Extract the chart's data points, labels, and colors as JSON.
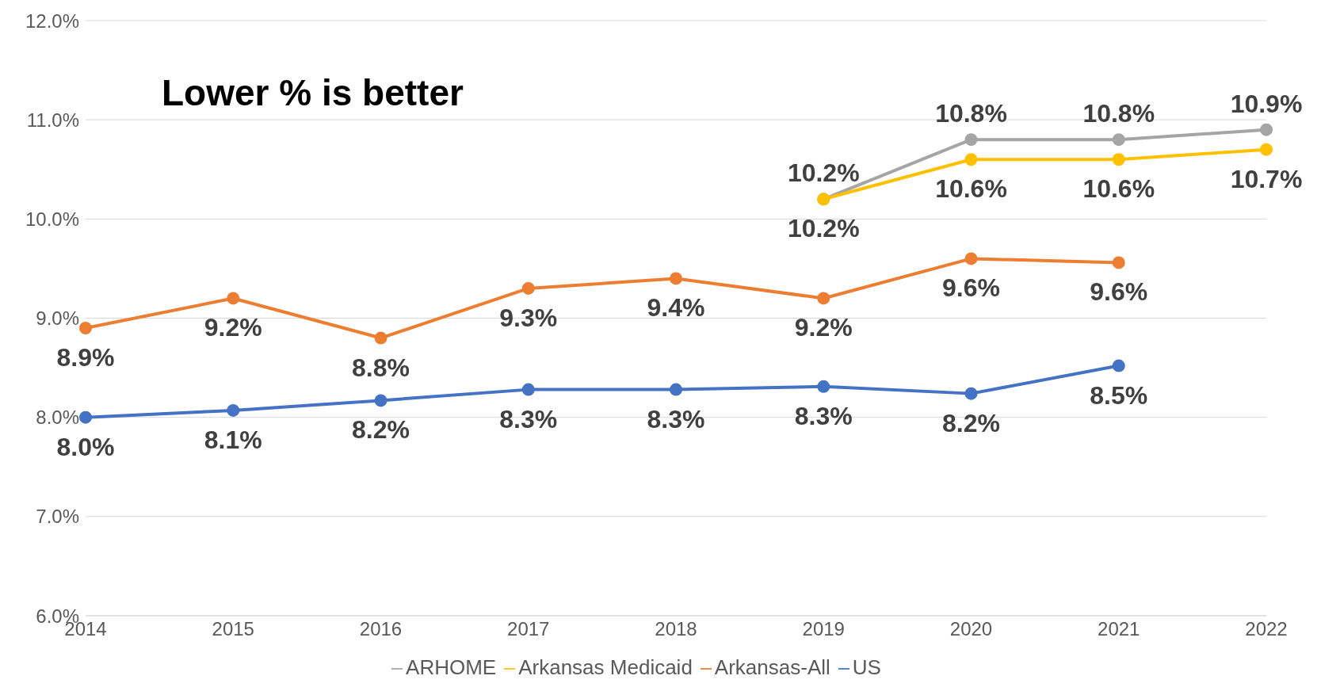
{
  "chart_data": {
    "type": "line",
    "categories": [
      "2014",
      "2015",
      "2016",
      "2017",
      "2018",
      "2019",
      "2020",
      "2021",
      "2022"
    ],
    "series": [
      {
        "name": "US",
        "color": "#4472c4",
        "values": [
          8.0,
          8.07,
          8.17,
          8.28,
          8.28,
          8.31,
          8.24,
          8.52,
          null
        ],
        "value_labels": [
          "8.0%",
          "8.1%",
          "8.2%",
          "8.3%",
          "8.3%",
          "8.3%",
          "8.2%",
          "8.5%",
          null
        ]
      },
      {
        "name": "Arkansas-All",
        "color": "#ed7d31",
        "values": [
          8.9,
          9.2,
          8.8,
          9.3,
          9.4,
          9.2,
          9.6,
          9.56,
          null
        ],
        "value_labels": [
          "8.9%",
          "9.2%",
          "8.8%",
          "9.3%",
          "9.4%",
          "9.2%",
          "9.6%",
          "9.6%",
          null
        ]
      },
      {
        "name": "ARHOME",
        "color": "#a5a5a5",
        "values": [
          null,
          null,
          null,
          null,
          null,
          10.2,
          10.8,
          10.8,
          10.9
        ],
        "value_labels": [
          null,
          null,
          null,
          null,
          null,
          "10.2%",
          "10.8%",
          "10.8%",
          "10.9%"
        ]
      },
      {
        "name": "Arkansas Medicaid",
        "color": "#ffc000",
        "values": [
          null,
          null,
          null,
          null,
          null,
          10.2,
          10.6,
          10.6,
          10.7
        ],
        "value_labels": [
          null,
          null,
          null,
          null,
          null,
          "10.2%",
          "10.6%",
          "10.6%",
          "10.7%"
        ]
      }
    ],
    "ylim": [
      6,
      12
    ],
    "yticks": [
      {
        "value": 6,
        "label": "6.0%"
      },
      {
        "value": 7,
        "label": "7.0%"
      },
      {
        "value": 8,
        "label": "8.0%"
      },
      {
        "value": 9,
        "label": "9.0%"
      },
      {
        "value": 10,
        "label": "10.0%"
      },
      {
        "value": 11,
        "label": "11.0%"
      },
      {
        "value": 12,
        "label": "12.0%"
      }
    ],
    "annotations": [
      "Lower % is better"
    ],
    "grid": "y",
    "legend": "bottom",
    "marker": "circle",
    "line_style": "solid"
  }
}
